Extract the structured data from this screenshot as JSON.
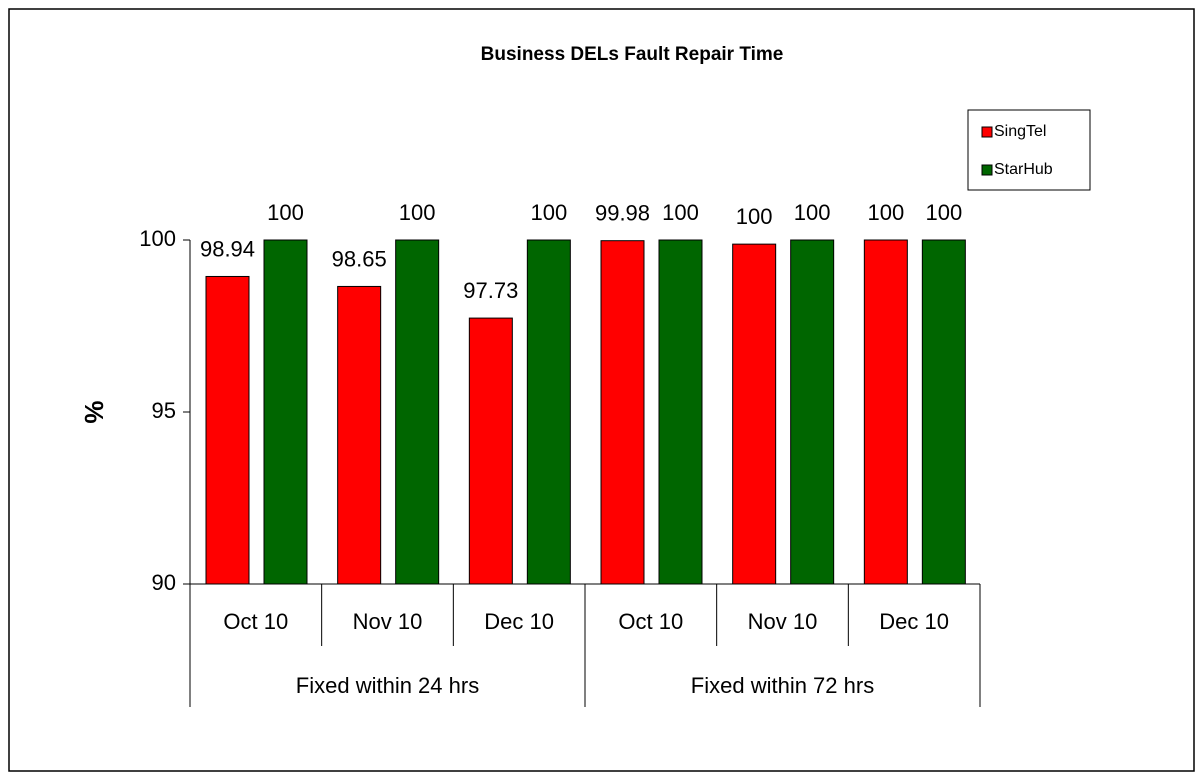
{
  "chart_data": {
    "type": "bar",
    "title": "Business DELs Fault Repair Time",
    "y_label": "%",
    "categories": [
      "Oct 10",
      "Nov 10",
      "Dec 10",
      "Oct 10",
      "Nov 10",
      "Dec 10"
    ],
    "category_groups": [
      "Fixed within 24 hrs",
      "Fixed within 72 hrs"
    ],
    "series": [
      {
        "name": "SingTel",
        "color": "#ff0000",
        "values": [
          98.94,
          98.65,
          97.73,
          99.98,
          99.88,
          100
        ],
        "value_labels": [
          "98.94",
          "98.65",
          "97.73",
          "99.98",
          "100",
          "100"
        ]
      },
      {
        "name": "StarHub",
        "color": "#006600",
        "values": [
          100,
          100,
          100,
          100,
          100,
          100
        ]
      }
    ],
    "ylim": [
      90,
      100
    ],
    "yticks": [
      90,
      95,
      100
    ],
    "legend": "upper right"
  }
}
